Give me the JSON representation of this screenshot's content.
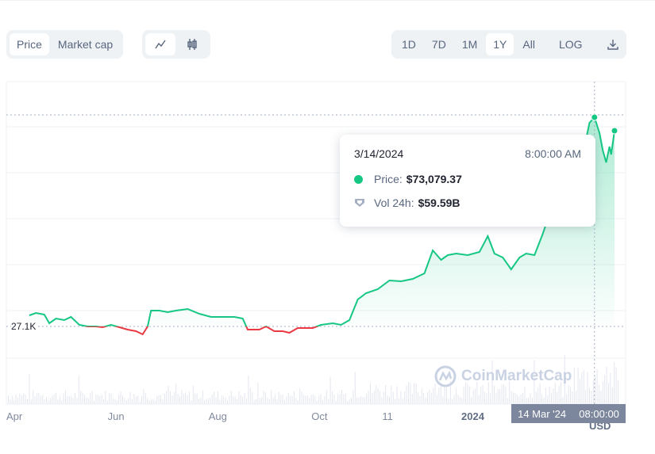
{
  "toolbar": {
    "type_tabs": [
      {
        "label": "Price",
        "active": true
      },
      {
        "label": "Market cap",
        "active": false
      }
    ],
    "chart_style": [
      {
        "icon": "line-chart-icon",
        "active": true
      },
      {
        "icon": "candlestick-icon",
        "active": false
      }
    ],
    "ranges": [
      {
        "label": "1D"
      },
      {
        "label": "7D"
      },
      {
        "label": "1M"
      },
      {
        "label": "1Y",
        "active": true
      },
      {
        "label": "All"
      }
    ],
    "log_label": "LOG",
    "download_icon": "download-icon"
  },
  "tooltip": {
    "date": "3/14/2024",
    "time": "8:00:00 AM",
    "price_label": "Price:",
    "price_value": "$73,079.37",
    "vol_label": "Vol 24h:",
    "vol_value": "$59.59B"
  },
  "crosshair": {
    "date": "14 Mar '24",
    "time": "08:00:00"
  },
  "watermark": "CoinMarketCap",
  "currency": "USD",
  "colors": {
    "up": "#16c784",
    "down": "#ea3943",
    "bg_button": "#eff2f5"
  },
  "chart_data": {
    "type": "area",
    "baseline": 27100,
    "baseline_label": "27.1K",
    "x_ticks": [
      {
        "label": "Apr",
        "date": "2023-04-01"
      },
      {
        "label": "Jun",
        "date": "2023-06-01"
      },
      {
        "label": "Aug",
        "date": "2023-08-01"
      },
      {
        "label": "Oct",
        "date": "2023-10-01"
      },
      {
        "label": "11",
        "date": "2023-11-11"
      },
      {
        "label": "2024",
        "date": "2024-01-01",
        "bold": true
      }
    ],
    "grid": true,
    "series": [
      {
        "points": [
          [
            "2023-04-10",
            29540
          ],
          [
            "2023-04-14",
            30060
          ],
          [
            "2023-04-19",
            29710
          ],
          [
            "2023-04-22",
            27800
          ],
          [
            "2023-04-26",
            28840
          ],
          [
            "2023-05-01",
            28490
          ],
          [
            "2023-05-05",
            29190
          ],
          [
            "2023-05-10",
            27450
          ],
          [
            "2023-05-15",
            27100
          ],
          [
            "2023-05-20",
            27100
          ],
          [
            "2023-05-24",
            26930
          ],
          [
            "2023-05-29",
            27450
          ],
          [
            "2023-06-03",
            26930
          ],
          [
            "2023-06-08",
            26400
          ],
          [
            "2023-06-13",
            26050
          ],
          [
            "2023-06-17",
            25360
          ],
          [
            "2023-06-20",
            27100
          ],
          [
            "2023-06-22",
            30580
          ],
          [
            "2023-06-27",
            30580
          ],
          [
            "2023-07-02",
            30240
          ],
          [
            "2023-07-07",
            30580
          ],
          [
            "2023-07-14",
            30930
          ],
          [
            "2023-07-21",
            29890
          ],
          [
            "2023-07-28",
            29190
          ],
          [
            "2023-08-04",
            29190
          ],
          [
            "2023-08-11",
            29190
          ],
          [
            "2023-08-16",
            28840
          ],
          [
            "2023-08-19",
            26400
          ],
          [
            "2023-08-26",
            26400
          ],
          [
            "2023-08-30",
            27100
          ],
          [
            "2023-09-04",
            26050
          ],
          [
            "2023-09-09",
            26050
          ],
          [
            "2023-09-13",
            25710
          ],
          [
            "2023-09-18",
            26750
          ],
          [
            "2023-09-23",
            26750
          ],
          [
            "2023-09-27",
            26750
          ],
          [
            "2023-10-02",
            27450
          ],
          [
            "2023-10-09",
            27800
          ],
          [
            "2023-10-14",
            27450
          ],
          [
            "2023-10-19",
            28490
          ],
          [
            "2023-10-24",
            33020
          ],
          [
            "2023-10-29",
            34420
          ],
          [
            "2023-11-05",
            35290
          ],
          [
            "2023-11-12",
            37200
          ],
          [
            "2023-11-19",
            37030
          ],
          [
            "2023-11-26",
            37550
          ],
          [
            "2023-12-03",
            38770
          ],
          [
            "2023-12-08",
            43820
          ],
          [
            "2023-12-13",
            41730
          ],
          [
            "2023-12-17",
            42780
          ],
          [
            "2023-12-22",
            43130
          ],
          [
            "2023-12-29",
            42780
          ],
          [
            "2024-01-05",
            43470
          ],
          [
            "2024-01-10",
            46960
          ],
          [
            "2024-01-14",
            43130
          ],
          [
            "2024-01-19",
            42260
          ],
          [
            "2024-01-24",
            39640
          ],
          [
            "2024-01-29",
            42260
          ],
          [
            "2024-02-02",
            43130
          ],
          [
            "2024-02-07",
            42780
          ],
          [
            "2024-02-12",
            47480
          ],
          [
            "2024-02-16",
            51840
          ],
          [
            "2024-02-21",
            55320
          ],
          [
            "2024-02-26",
            58800
          ],
          [
            "2024-03-04",
            64030
          ],
          [
            "2024-03-09",
            68390
          ],
          [
            "2024-03-11",
            71870
          ],
          [
            "2024-03-14",
            73079.37
          ],
          [
            "2024-03-17",
            69600
          ],
          [
            "2024-03-19",
            65770
          ],
          [
            "2024-03-21",
            63160
          ],
          [
            "2024-03-23",
            66640
          ],
          [
            "2024-03-24",
            64900
          ],
          [
            "2024-03-26",
            70130
          ]
        ]
      }
    ],
    "highlight": {
      "date": "2024-03-14",
      "price": 73079.37
    }
  }
}
